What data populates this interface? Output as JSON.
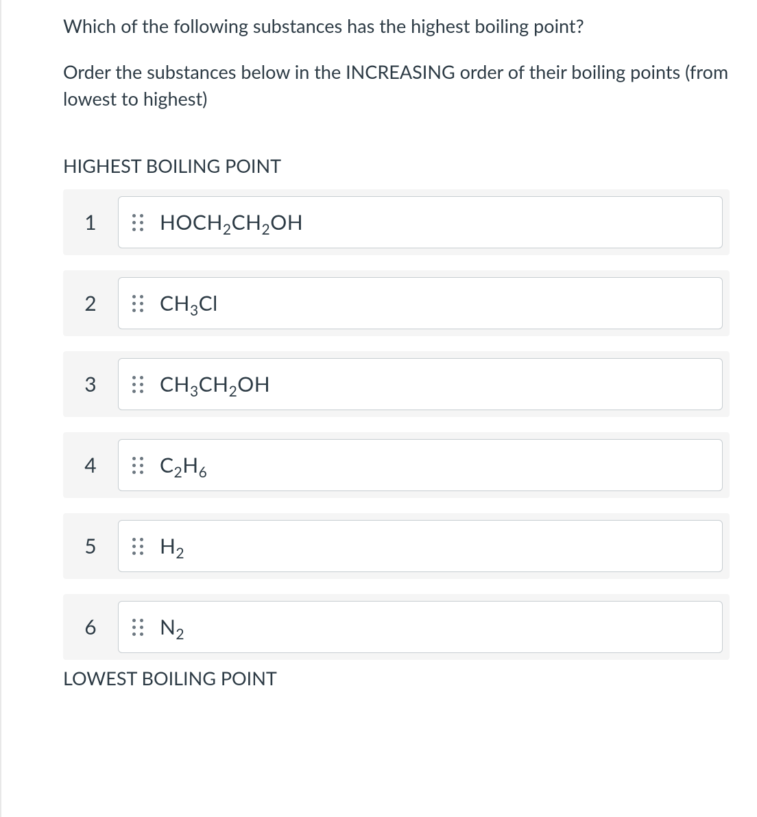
{
  "question": {
    "prompt_line1": "Which of the following substances has the highest boiling point?",
    "prompt_line2": "Order the substances below in the INCREASING order of their boiling points (from lowest to highest)"
  },
  "labels": {
    "top": "HIGHEST BOILING POINT",
    "bottom": "LOWEST BOILING POINT"
  },
  "items": [
    {
      "rank": "1",
      "formula_html": "HOCH<sub>2</sub>CH<sub>2</sub>OH"
    },
    {
      "rank": "2",
      "formula_html": "CH<sub>3</sub>Cl"
    },
    {
      "rank": "3",
      "formula_html": "CH<sub>3</sub>CH<sub>2</sub>OH"
    },
    {
      "rank": "4",
      "formula_html": "C<sub>2</sub>H<sub>6</sub>"
    },
    {
      "rank": "5",
      "formula_html": "H<sub>2</sub>"
    },
    {
      "rank": "6",
      "formula_html": "N<sub>2</sub>"
    }
  ],
  "style": {
    "background": "#ffffff",
    "row_bg": "#f5f5f5",
    "card_bg": "#ffffff",
    "card_border": "#c7cdd1",
    "text_color": "#2d3b45",
    "dot_color": "#6c7780",
    "font_size_body": 27,
    "font_size_formula": 30
  }
}
